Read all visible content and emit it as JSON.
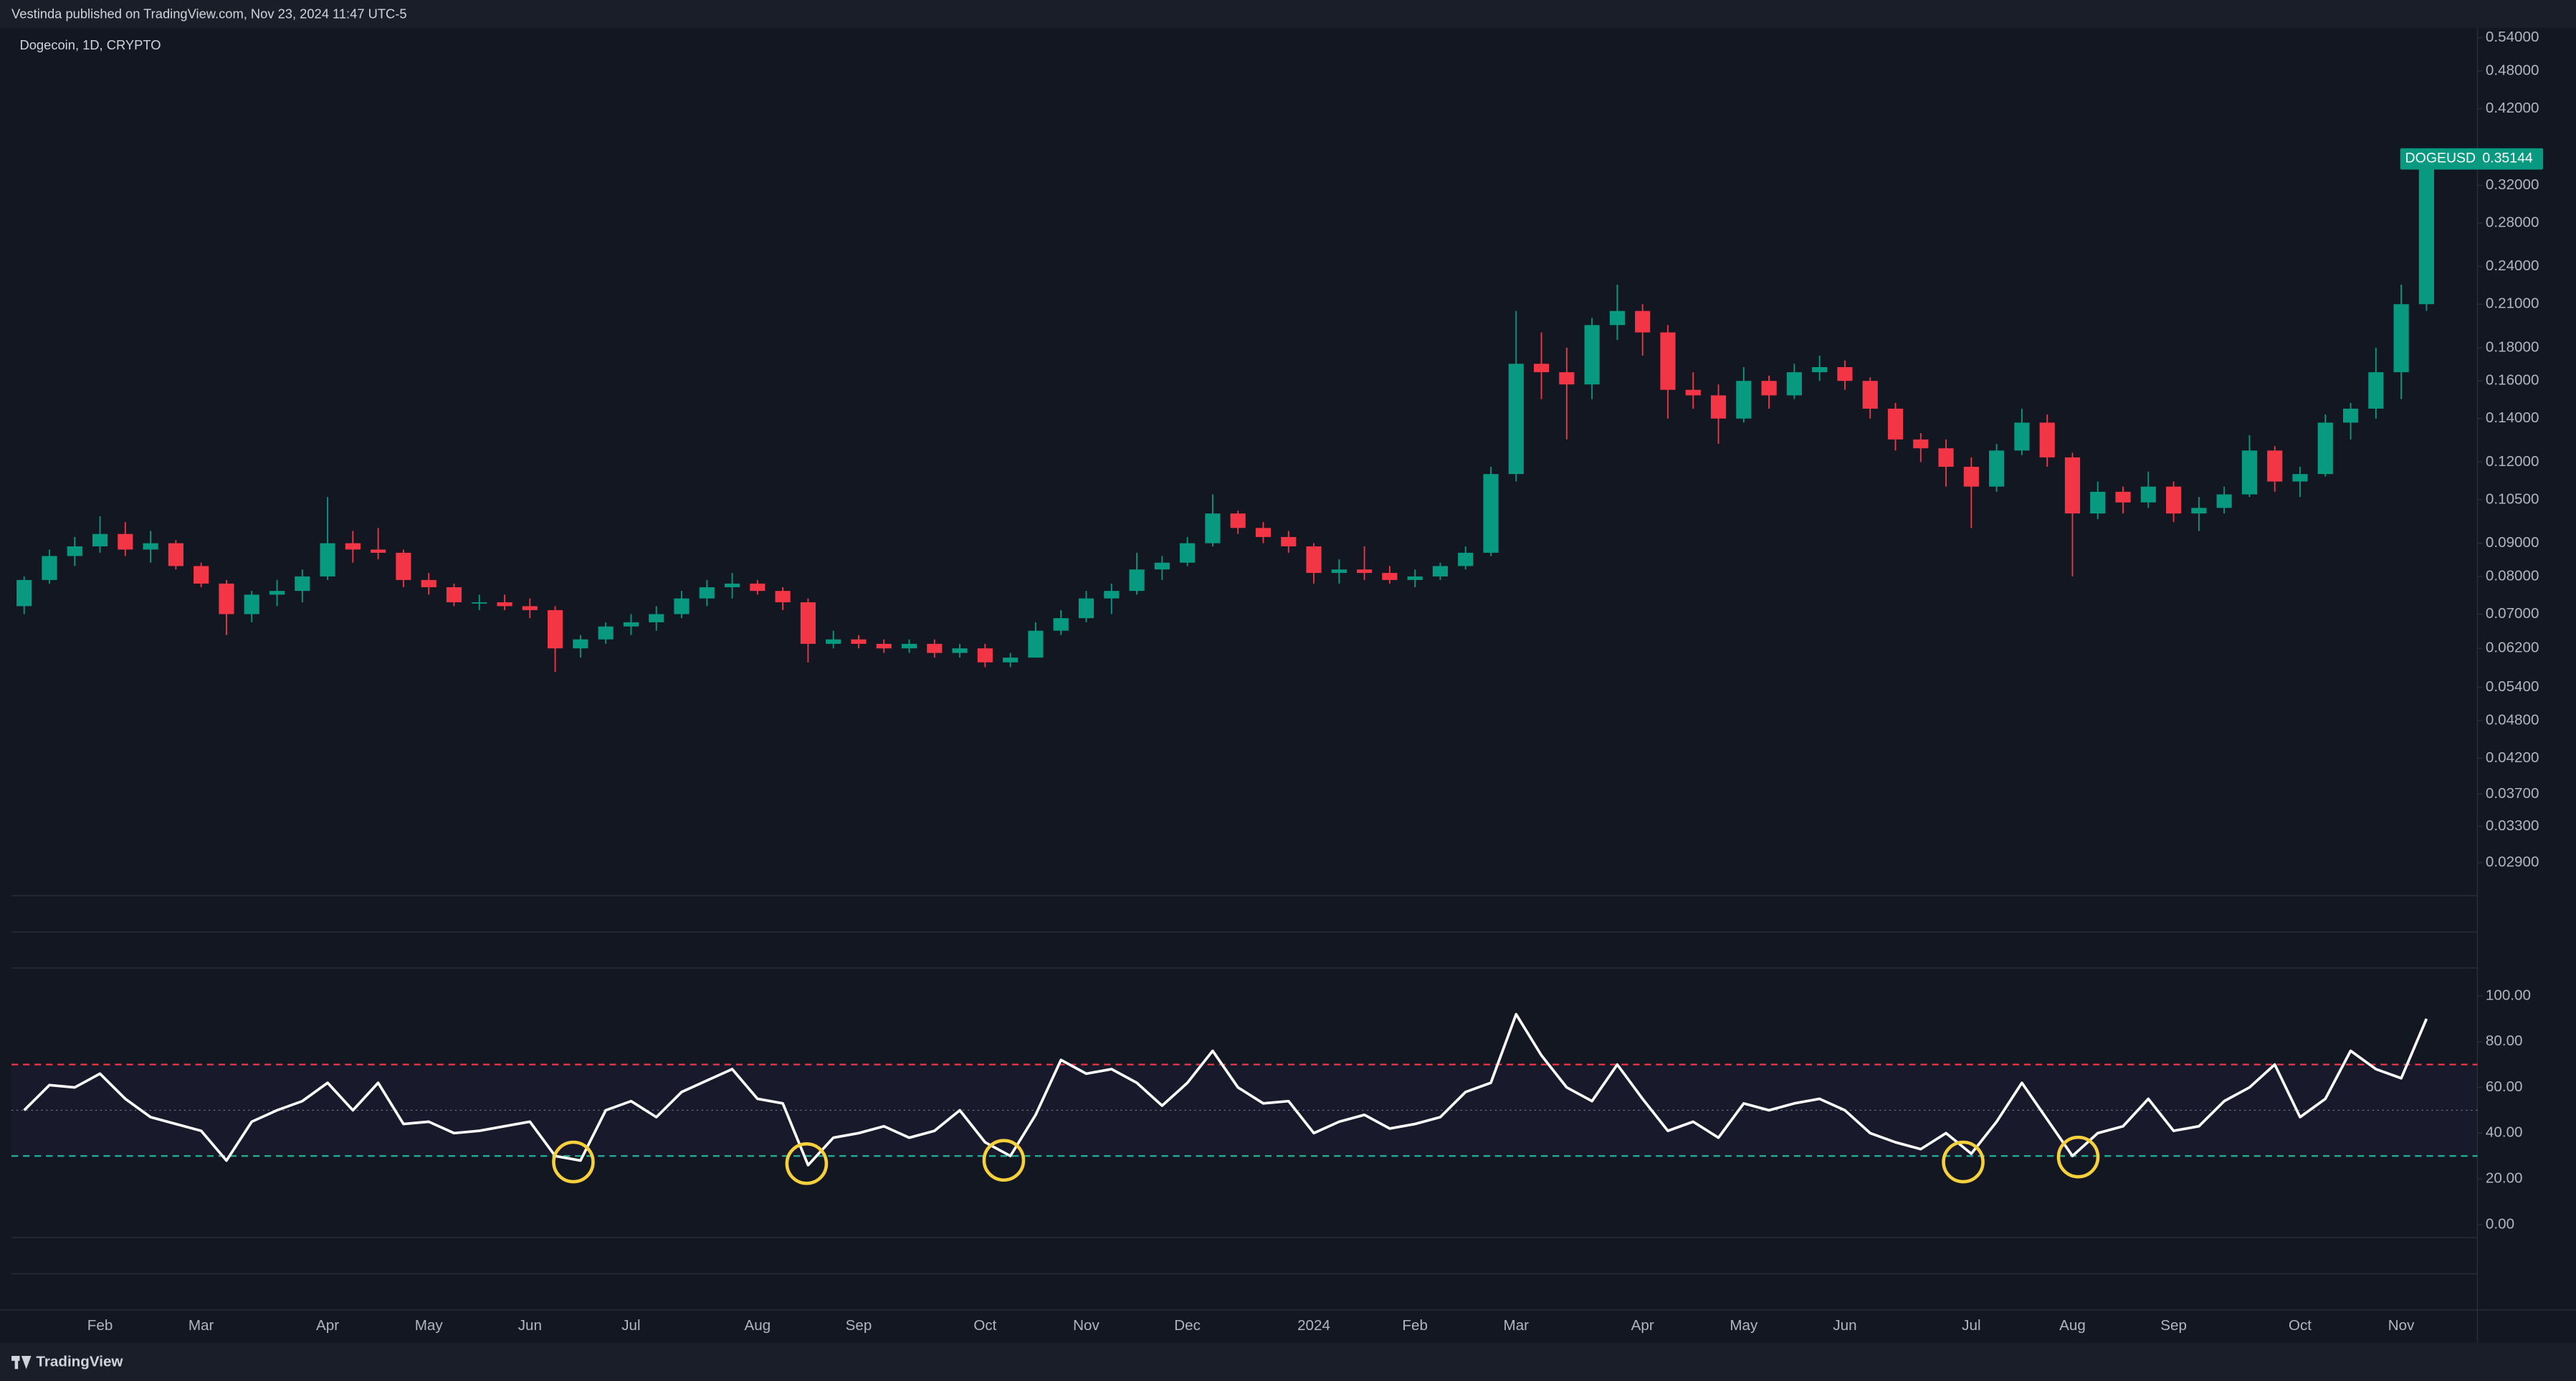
{
  "header": {
    "publisher": "Vestinda published on TradingView.com, Nov 23, 2024 11:47 UTC-5"
  },
  "footer": {
    "brand": "TradingView"
  },
  "chart_data": [
    {
      "type": "candlestick",
      "title": "Dogecoin, 1D, CRYPTO",
      "symbol": "DOGEUSD",
      "categories": [
        null,
        null,
        null,
        "Feb",
        null,
        null,
        null,
        "Mar",
        null,
        null,
        null,
        null,
        "Apr",
        null,
        null,
        null,
        "May",
        null,
        null,
        null,
        "Jun",
        null,
        null,
        null,
        "Jul",
        null,
        null,
        null,
        null,
        "Aug",
        null,
        null,
        null,
        "Sep",
        null,
        null,
        null,
        null,
        "Oct",
        null,
        null,
        null,
        "Nov",
        null,
        null,
        null,
        "Dec",
        null,
        null,
        null,
        null,
        "2024",
        null,
        null,
        null,
        "Feb",
        null,
        null,
        null,
        "Mar",
        null,
        null,
        null,
        null,
        "Apr",
        null,
        null,
        null,
        "May",
        null,
        null,
        null,
        "Jun",
        null,
        null,
        null,
        null,
        "Jul",
        null,
        null,
        null,
        "Aug",
        null,
        null,
        null,
        "Sep",
        null,
        null,
        null,
        null,
        "Oct",
        null,
        null,
        null,
        "Nov",
        null
      ],
      "open": [
        0.072,
        0.079,
        0.086,
        0.089,
        0.093,
        0.088,
        0.09,
        0.083,
        0.078,
        0.07,
        0.075,
        0.076,
        0.08,
        0.09,
        0.088,
        0.087,
        0.079,
        0.077,
        0.073,
        0.073,
        0.072,
        0.071,
        0.062,
        0.064,
        0.067,
        0.068,
        0.07,
        0.074,
        0.077,
        0.078,
        0.076,
        0.073,
        0.063,
        0.064,
        0.063,
        0.062,
        0.063,
        0.061,
        0.062,
        0.059,
        0.06,
        0.066,
        0.069,
        0.074,
        0.076,
        0.082,
        0.084,
        0.09,
        0.1,
        0.095,
        0.092,
        0.089,
        0.081,
        0.082,
        0.081,
        0.079,
        0.08,
        0.083,
        0.087,
        0.115,
        0.17,
        0.165,
        0.158,
        0.195,
        0.205,
        0.19,
        0.155,
        0.152,
        0.14,
        0.16,
        0.152,
        0.165,
        0.168,
        0.16,
        0.145,
        0.13,
        0.126,
        0.118,
        0.11,
        0.125,
        0.138,
        0.122,
        0.1,
        0.108,
        0.104,
        0.11,
        0.1,
        0.102,
        0.107,
        0.125,
        0.112,
        0.115,
        0.138,
        0.145,
        0.165,
        0.21
      ],
      "high": [
        0.08,
        0.088,
        0.092,
        0.099,
        0.097,
        0.094,
        0.091,
        0.084,
        0.079,
        0.076,
        0.079,
        0.082,
        0.106,
        0.094,
        0.095,
        0.088,
        0.081,
        0.078,
        0.075,
        0.075,
        0.074,
        0.072,
        0.065,
        0.068,
        0.07,
        0.072,
        0.076,
        0.079,
        0.081,
        0.079,
        0.077,
        0.074,
        0.066,
        0.065,
        0.064,
        0.064,
        0.064,
        0.063,
        0.063,
        0.061,
        0.068,
        0.071,
        0.076,
        0.078,
        0.087,
        0.086,
        0.092,
        0.107,
        0.101,
        0.097,
        0.094,
        0.09,
        0.085,
        0.089,
        0.083,
        0.082,
        0.084,
        0.089,
        0.118,
        0.205,
        0.19,
        0.18,
        0.2,
        0.225,
        0.21,
        0.195,
        0.165,
        0.158,
        0.168,
        0.163,
        0.17,
        0.175,
        0.172,
        0.162,
        0.148,
        0.133,
        0.13,
        0.122,
        0.128,
        0.145,
        0.142,
        0.124,
        0.112,
        0.11,
        0.116,
        0.112,
        0.106,
        0.11,
        0.132,
        0.127,
        0.118,
        0.142,
        0.148,
        0.18,
        0.225,
        0.36
      ],
      "low": [
        0.07,
        0.078,
        0.083,
        0.087,
        0.086,
        0.084,
        0.082,
        0.077,
        0.065,
        0.068,
        0.072,
        0.073,
        0.079,
        0.084,
        0.085,
        0.077,
        0.075,
        0.072,
        0.071,
        0.071,
        0.069,
        0.057,
        0.06,
        0.063,
        0.065,
        0.066,
        0.069,
        0.072,
        0.074,
        0.075,
        0.071,
        0.059,
        0.062,
        0.062,
        0.061,
        0.061,
        0.06,
        0.06,
        0.058,
        0.058,
        0.06,
        0.065,
        0.068,
        0.07,
        0.075,
        0.079,
        0.083,
        0.089,
        0.093,
        0.09,
        0.087,
        0.078,
        0.078,
        0.079,
        0.078,
        0.077,
        0.079,
        0.082,
        0.086,
        0.112,
        0.15,
        0.13,
        0.15,
        0.185,
        0.175,
        0.14,
        0.145,
        0.128,
        0.138,
        0.145,
        0.15,
        0.16,
        0.155,
        0.14,
        0.125,
        0.12,
        0.11,
        0.095,
        0.108,
        0.123,
        0.118,
        0.08,
        0.098,
        0.1,
        0.102,
        0.097,
        0.094,
        0.1,
        0.106,
        0.108,
        0.106,
        0.114,
        0.13,
        0.14,
        0.15,
        0.205
      ],
      "close": [
        0.079,
        0.086,
        0.089,
        0.093,
        0.088,
        0.09,
        0.083,
        0.078,
        0.07,
        0.075,
        0.076,
        0.08,
        0.09,
        0.088,
        0.087,
        0.079,
        0.077,
        0.073,
        0.073,
        0.072,
        0.071,
        0.062,
        0.064,
        0.067,
        0.068,
        0.07,
        0.074,
        0.077,
        0.078,
        0.076,
        0.073,
        0.063,
        0.064,
        0.063,
        0.062,
        0.063,
        0.061,
        0.062,
        0.059,
        0.06,
        0.066,
        0.069,
        0.074,
        0.076,
        0.082,
        0.084,
        0.09,
        0.1,
        0.095,
        0.092,
        0.089,
        0.081,
        0.082,
        0.081,
        0.079,
        0.08,
        0.083,
        0.087,
        0.115,
        0.17,
        0.165,
        0.158,
        0.195,
        0.205,
        0.19,
        0.155,
        0.152,
        0.14,
        0.16,
        0.152,
        0.165,
        0.168,
        0.16,
        0.145,
        0.13,
        0.126,
        0.118,
        0.11,
        0.125,
        0.138,
        0.122,
        0.1,
        0.108,
        0.104,
        0.11,
        0.1,
        0.102,
        0.107,
        0.125,
        0.112,
        0.115,
        0.138,
        0.145,
        0.165,
        0.21,
        0.35144
      ],
      "up_color": "#089981",
      "down_color": "#f23645",
      "log_scale": true,
      "ylim": [
        0.0258,
        0.559
      ],
      "yticks": [
        {
          "value": 0.54,
          "label": "0.54000"
        },
        {
          "value": 0.48,
          "label": "0.48000"
        },
        {
          "value": 0.42,
          "label": "0.42000"
        },
        {
          "value": 0.32,
          "label": "0.32000"
        },
        {
          "value": 0.28,
          "label": "0.28000"
        },
        {
          "value": 0.24,
          "label": "0.24000"
        },
        {
          "value": 0.21,
          "label": "0.21000"
        },
        {
          "value": 0.18,
          "label": "0.18000"
        },
        {
          "value": 0.16,
          "label": "0.16000"
        },
        {
          "value": 0.14,
          "label": "0.14000"
        },
        {
          "value": 0.12,
          "label": "0.12000"
        },
        {
          "value": 0.105,
          "label": "0.10500"
        },
        {
          "value": 0.09,
          "label": "0.09000"
        },
        {
          "value": 0.08,
          "label": "0.08000"
        },
        {
          "value": 0.07,
          "label": "0.07000"
        },
        {
          "value": 0.062,
          "label": "0.06200"
        },
        {
          "value": 0.054,
          "label": "0.05400"
        },
        {
          "value": 0.048,
          "label": "0.04800"
        },
        {
          "value": 0.042,
          "label": "0.04200"
        },
        {
          "value": 0.037,
          "label": "0.03700"
        },
        {
          "value": 0.033,
          "label": "0.03300"
        },
        {
          "value": 0.029,
          "label": "0.02900"
        }
      ]
    },
    {
      "type": "line",
      "color": "#ffffff",
      "values": [
        50,
        61,
        60,
        66,
        55,
        47,
        44,
        41,
        28,
        45,
        50,
        54,
        62,
        50,
        62,
        44,
        45,
        40,
        41,
        43,
        45,
        30,
        28,
        50,
        54,
        47,
        58,
        63,
        68,
        55,
        53,
        26,
        38,
        40,
        43,
        38,
        41,
        50,
        36,
        30,
        48,
        72,
        66,
        68,
        62,
        52,
        62,
        76,
        60,
        53,
        54,
        40,
        45,
        48,
        42,
        44,
        47,
        58,
        62,
        92,
        74,
        60,
        54,
        70,
        55,
        41,
        45,
        38,
        53,
        50,
        53,
        55,
        50,
        40,
        36,
        33,
        40,
        31,
        45,
        62,
        46,
        30,
        40,
        43,
        55,
        41,
        43,
        54,
        60,
        70,
        47,
        55,
        76,
        68,
        64,
        90
      ],
      "upper_band": 70,
      "lower_band": 30,
      "mid_line": 50,
      "upper_color": "#f23645",
      "lower_color": "#22ab94",
      "ylim": [
        -21.5,
        111.5
      ],
      "yticks": [
        {
          "value": 0,
          "label": "0.00"
        },
        {
          "value": 20,
          "label": "20.00"
        },
        {
          "value": 40,
          "label": "40.00"
        },
        {
          "value": 60,
          "label": "60.00"
        },
        {
          "value": 80,
          "label": "80.00"
        },
        {
          "value": 100,
          "label": "100.00"
        }
      ]
    }
  ]
}
